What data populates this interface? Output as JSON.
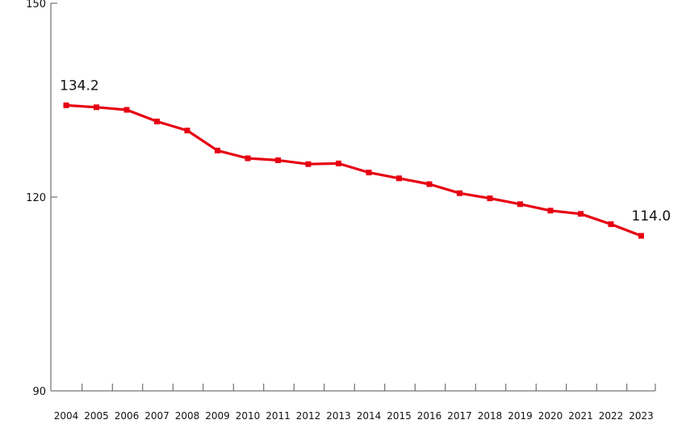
{
  "chart_data": {
    "type": "line",
    "title": "",
    "xlabel": "",
    "ylabel": "",
    "categories": [
      "2004",
      "2005",
      "2006",
      "2007",
      "2008",
      "2009",
      "2010",
      "2011",
      "2012",
      "2013",
      "2014",
      "2015",
      "2016",
      "2017",
      "2018",
      "2019",
      "2020",
      "2021",
      "2022",
      "2023"
    ],
    "series": [
      {
        "values": [
          134.2,
          133.9,
          133.5,
          131.7,
          130.3,
          127.2,
          126.0,
          125.7,
          125.1,
          125.2,
          123.8,
          122.9,
          122.0,
          120.6,
          119.8,
          118.9,
          117.9,
          117.4,
          115.8,
          114.0
        ],
        "color": "#e60012"
      }
    ],
    "ylim": [
      90,
      150
    ],
    "yticks": [
      "150",
      "120",
      "90"
    ],
    "data_labels": [
      {
        "index": 0,
        "text": "134.2"
      },
      {
        "index": 19,
        "text": "114.0"
      }
    ],
    "grid": false,
    "legend": "none"
  }
}
